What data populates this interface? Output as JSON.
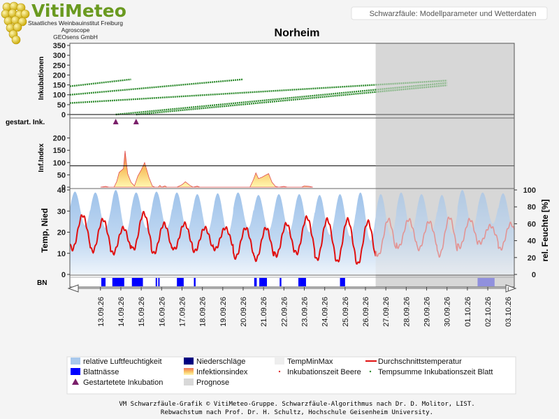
{
  "header": {
    "logo_text": "VitiMeteo",
    "institute_lines": [
      "Staatliches Weinbauinstitut Freiburg",
      "Agroscope",
      "GEOsens GmbH"
    ],
    "subtitle": "Schwarzfäule: Modellparameter und Wetterdaten",
    "title": "Norheim"
  },
  "colors": {
    "incubation_line": "#2e8b2e",
    "temp_line": "#e01010",
    "humidity_fill": "#a8c8ec",
    "wetness": "#0000ff",
    "infection_fill": "#f8e070",
    "infection_edge": "#e05050",
    "started_incubation": "#7a1f6a",
    "forecast_shade": "#d8d8d8"
  },
  "chart_data": {
    "type": "line",
    "x_dates": [
      "13.09.26",
      "14.09.26",
      "15.09.26",
      "16.09.26",
      "17.09.26",
      "18.09.26",
      "19.09.26",
      "20.09.26",
      "21.09.26",
      "22.09.26",
      "23.09.26",
      "24.09.26",
      "25.09.26",
      "26.09.26",
      "27.09.26",
      "28.09.26",
      "29.09.26",
      "30.09.26",
      "01.10.26",
      "02.10.26",
      "03.10.26"
    ],
    "forecast_start": "27.09.26",
    "panels": {
      "incubation": {
        "ylabel": "Inkubationen",
        "ylim": [
          0,
          350
        ],
        "yticks": [
          0,
          50,
          100,
          150,
          200,
          250,
          300,
          350
        ],
        "lines": [
          {
            "start": "12.09.26 00:00",
            "end": "15.09.26 00:00",
            "y0": 143,
            "y1": 178
          },
          {
            "start": "12.09.26 00:00",
            "end": "20.09.26 12:00",
            "y0": 100,
            "y1": 178
          },
          {
            "start": "12.09.26 00:00",
            "end": "30.09.26 12:00",
            "y0": 58,
            "y1": 172
          },
          {
            "start": "14.09.26 06:00",
            "end": "30.09.26 12:00",
            "y0": 0,
            "y1": 160
          },
          {
            "start": "15.09.26 06:00",
            "end": "30.09.26 12:00",
            "y0": 0,
            "y1": 148
          }
        ]
      },
      "started_incubations": {
        "ylabel": "gestart. Ink.",
        "dates": [
          "14.09.26 06:00",
          "15.09.26 06:00"
        ]
      },
      "infection_index": {
        "ylabel": "Inf.Index",
        "ylim": [
          0,
          250
        ],
        "yticks": [
          0,
          50,
          100,
          150,
          200
        ],
        "threshold": 87,
        "points": [
          [
            "13.09.26 12:00",
            0
          ],
          [
            "13.09.26 18:00",
            3
          ],
          [
            "13.09.26 22:00",
            0
          ],
          [
            "14.09.26 04:00",
            0
          ],
          [
            "14.09.26 07:00",
            22
          ],
          [
            "14.09.26 10:00",
            60
          ],
          [
            "14.09.26 15:00",
            75
          ],
          [
            "14.09.26 17:00",
            148
          ],
          [
            "14.09.26 20:00",
            55
          ],
          [
            "15.09.26 00:00",
            20
          ],
          [
            "15.09.26 04:00",
            5
          ],
          [
            "15.09.26 08:00",
            45
          ],
          [
            "15.09.26 12:00",
            70
          ],
          [
            "15.09.26 16:00",
            100
          ],
          [
            "15.09.26 21:00",
            40
          ],
          [
            "16.09.26 01:00",
            5
          ],
          [
            "16.09.26 04:00",
            0
          ],
          [
            "16.09.26 08:00",
            0
          ],
          [
            "16.09.26 10:00",
            7
          ],
          [
            "16.09.26 12:00",
            0
          ],
          [
            "16.09.26 16:00",
            5
          ],
          [
            "16.09.26 18:00",
            0
          ],
          [
            "17.09.26 06:00",
            0
          ],
          [
            "17.09.26 12:00",
            10
          ],
          [
            "17.09.26 16:00",
            22
          ],
          [
            "17.09.26 21:00",
            8
          ],
          [
            "18.09.26 01:00",
            0
          ],
          [
            "18.09.26 06:00",
            4
          ],
          [
            "18.09.26 09:00",
            0
          ],
          [
            "20.09.26 20:00",
            0
          ],
          [
            "21.09.26 00:00",
            30
          ],
          [
            "21.09.26 03:00",
            58
          ],
          [
            "21.09.26 06:00",
            35
          ],
          [
            "21.09.26 10:00",
            40
          ],
          [
            "21.09.26 14:00",
            48
          ],
          [
            "21.09.26 18:00",
            55
          ],
          [
            "21.09.26 22:00",
            20
          ],
          [
            "22.09.26 02:00",
            3
          ],
          [
            "22.09.26 06:00",
            0
          ],
          [
            "22.09.26 12:00",
            3
          ],
          [
            "22.09.26 16:00",
            0
          ],
          [
            "23.09.26 09:00",
            0
          ],
          [
            "23.09.26 12:00",
            5
          ],
          [
            "23.09.26 18:00",
            3
          ],
          [
            "23.09.26 22:00",
            0
          ]
        ]
      },
      "weather": {
        "ylabel_left": "Temp, Nied",
        "ylim_left": [
          0,
          40
        ],
        "yticks_left": [
          0,
          10,
          20,
          30,
          40
        ],
        "ylabel_right": "rel. Feuchte [%]",
        "ylim_right": [
          0,
          100
        ],
        "yticks_right": [
          0,
          20,
          40,
          60,
          80,
          100
        ],
        "temperature_daily_min": [
          12,
          11,
          10,
          12,
          10,
          12,
          11,
          12,
          8,
          7,
          9,
          10,
          7,
          6,
          5,
          9,
          13,
          12,
          9,
          13,
          15,
          12
        ],
        "temperature_daily_max": [
          28,
          26,
          22,
          29,
          24,
          24,
          22,
          22,
          22,
          22,
          24,
          27,
          26,
          26,
          25,
          26,
          26,
          25,
          27,
          26,
          23,
          24
        ],
        "humidity_daily_max": [
          98,
          97,
          100,
          97,
          98,
          97,
          95,
          96,
          97,
          94,
          95,
          95,
          94,
          95,
          97,
          95,
          97,
          95,
          94,
          100,
          97,
          96
        ],
        "humidity_daily_min": [
          58,
          55,
          50,
          55,
          55,
          52,
          50,
          48,
          55,
          52,
          50,
          50,
          47,
          45,
          40,
          45,
          50,
          52,
          48,
          55,
          60,
          55
        ]
      },
      "leaf_wetness": {
        "ylabel": "BN",
        "periods": [
          [
            "13.09.26 13:00",
            "13.09.26 18:00"
          ],
          [
            "14.09.26 02:00",
            "14.09.26 16:00"
          ],
          [
            "15.09.26 01:00",
            "15.09.26 14:00"
          ],
          [
            "16.09.26 05:00",
            "16.09.26 06:00"
          ],
          [
            "16.09.26 08:00",
            "16.09.26 09:00"
          ],
          [
            "17.09.26 06:00",
            "17.09.26 14:00"
          ],
          [
            "18.09.26 02:00",
            "18.09.26 04:00"
          ],
          [
            "21.09.26 01:00",
            "21.09.26 04:00"
          ],
          [
            "21.09.26 07:00",
            "21.09.26 16:00"
          ],
          [
            "22.09.26 07:00",
            "22.09.26 09:00"
          ],
          [
            "23.09.26 05:00",
            "23.09.26 14:00"
          ],
          [
            "25.09.26 06:00",
            "25.09.26 12:00"
          ],
          [
            "02.10.26 00:00",
            "02.10.26 20:00"
          ]
        ]
      }
    },
    "legend": [
      {
        "label": "relative Luftfeuchtigkeit",
        "kind": "humidity"
      },
      {
        "label": "Niederschläge",
        "kind": "precip"
      },
      {
        "label": "TempMinMax",
        "kind": "tempminmax"
      },
      {
        "label": "Durchschnittstemperatur",
        "kind": "templine"
      },
      {
        "label": "Blattnässe",
        "kind": "wetness"
      },
      {
        "label": "Infektionsindex",
        "kind": "infection"
      },
      {
        "label": "Inkubationszeit Beere",
        "kind": "inkberry"
      },
      {
        "label": "Tempsumme Inkubationszeit Blatt",
        "kind": "inkleaf"
      },
      {
        "label": "Gestartetete Inkubation",
        "kind": "started"
      },
      {
        "label": "Prognose",
        "kind": "forecast"
      }
    ]
  },
  "footer": {
    "line1": "VM Schwarzfäule-Grafik © VitiMeteo-Gruppe. Schwarzfäule-Algorithmus nach Dr. D. Molitor, LIST.",
    "line2": "Rebwachstum nach Prof. Dr. H. Schultz, Hochschule Geisenheim University."
  }
}
